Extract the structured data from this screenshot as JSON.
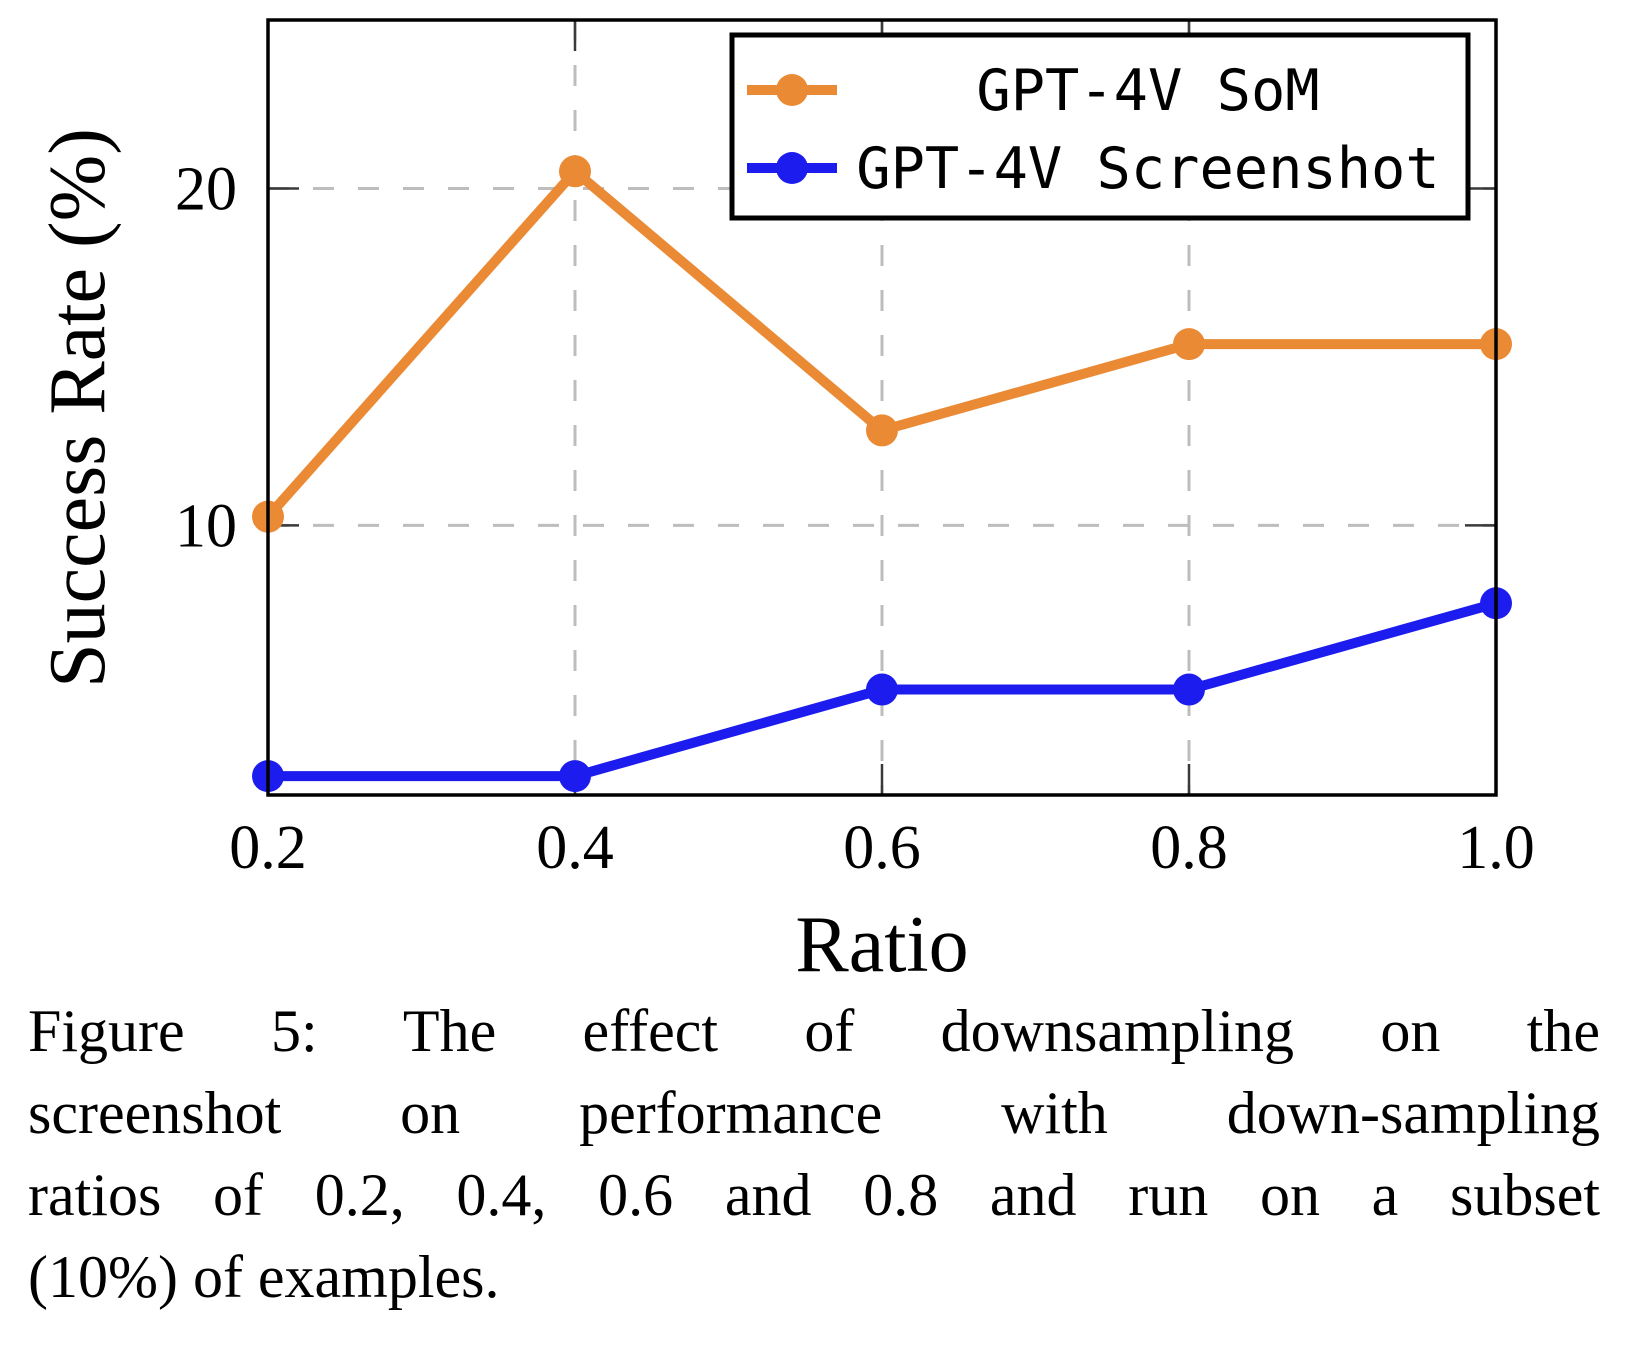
{
  "figure": {
    "label": "Figure 5",
    "caption_lines": [
      "Figure 5:  The effect of downsampling on the",
      "screenshot on performance with down-sampling",
      "ratios of 0.2, 0.4, 0.6 and 0.8 and run on a subset",
      "(10%) of examples."
    ],
    "caption_full": "Figure 5: The effect of downsampling on the screenshot on performance with down-sampling ratios of 0.2, 0.4, 0.6 and 0.8 and run on a subset (10%) of examples."
  },
  "chart_data": {
    "type": "line",
    "title": "",
    "xlabel": "Ratio",
    "ylabel": "Success Rate (%)",
    "x": [
      0.2,
      0.4,
      0.6,
      0.8,
      1.0
    ],
    "series": [
      {
        "name": "GPT-4V SoM",
        "color": "#EA8A35",
        "values": [
          10.26,
          20.51,
          12.82,
          15.38,
          15.38
        ]
      },
      {
        "name": "GPT-4V Screenshot",
        "color": "#1C1CEE",
        "values": [
          2.56,
          2.56,
          5.13,
          5.13,
          7.69
        ]
      }
    ],
    "xlim": [
      0.2,
      1.0
    ],
    "ylim": [
      2,
      25
    ],
    "xticks": [
      0.2,
      0.4,
      0.6,
      0.8,
      1.0
    ],
    "xtick_labels": [
      "0.2",
      "0.4",
      "0.6",
      "0.8",
      "1.0"
    ],
    "yticks": [
      10,
      20
    ],
    "ytick_labels": [
      "10",
      "20"
    ],
    "grid": "dashed",
    "grid_color": "#bdbdbd",
    "axis_color": "#000000",
    "legend": {
      "position": "top-right",
      "entries": [
        "GPT-4V SoM",
        "GPT-4V Screenshot"
      ]
    }
  }
}
